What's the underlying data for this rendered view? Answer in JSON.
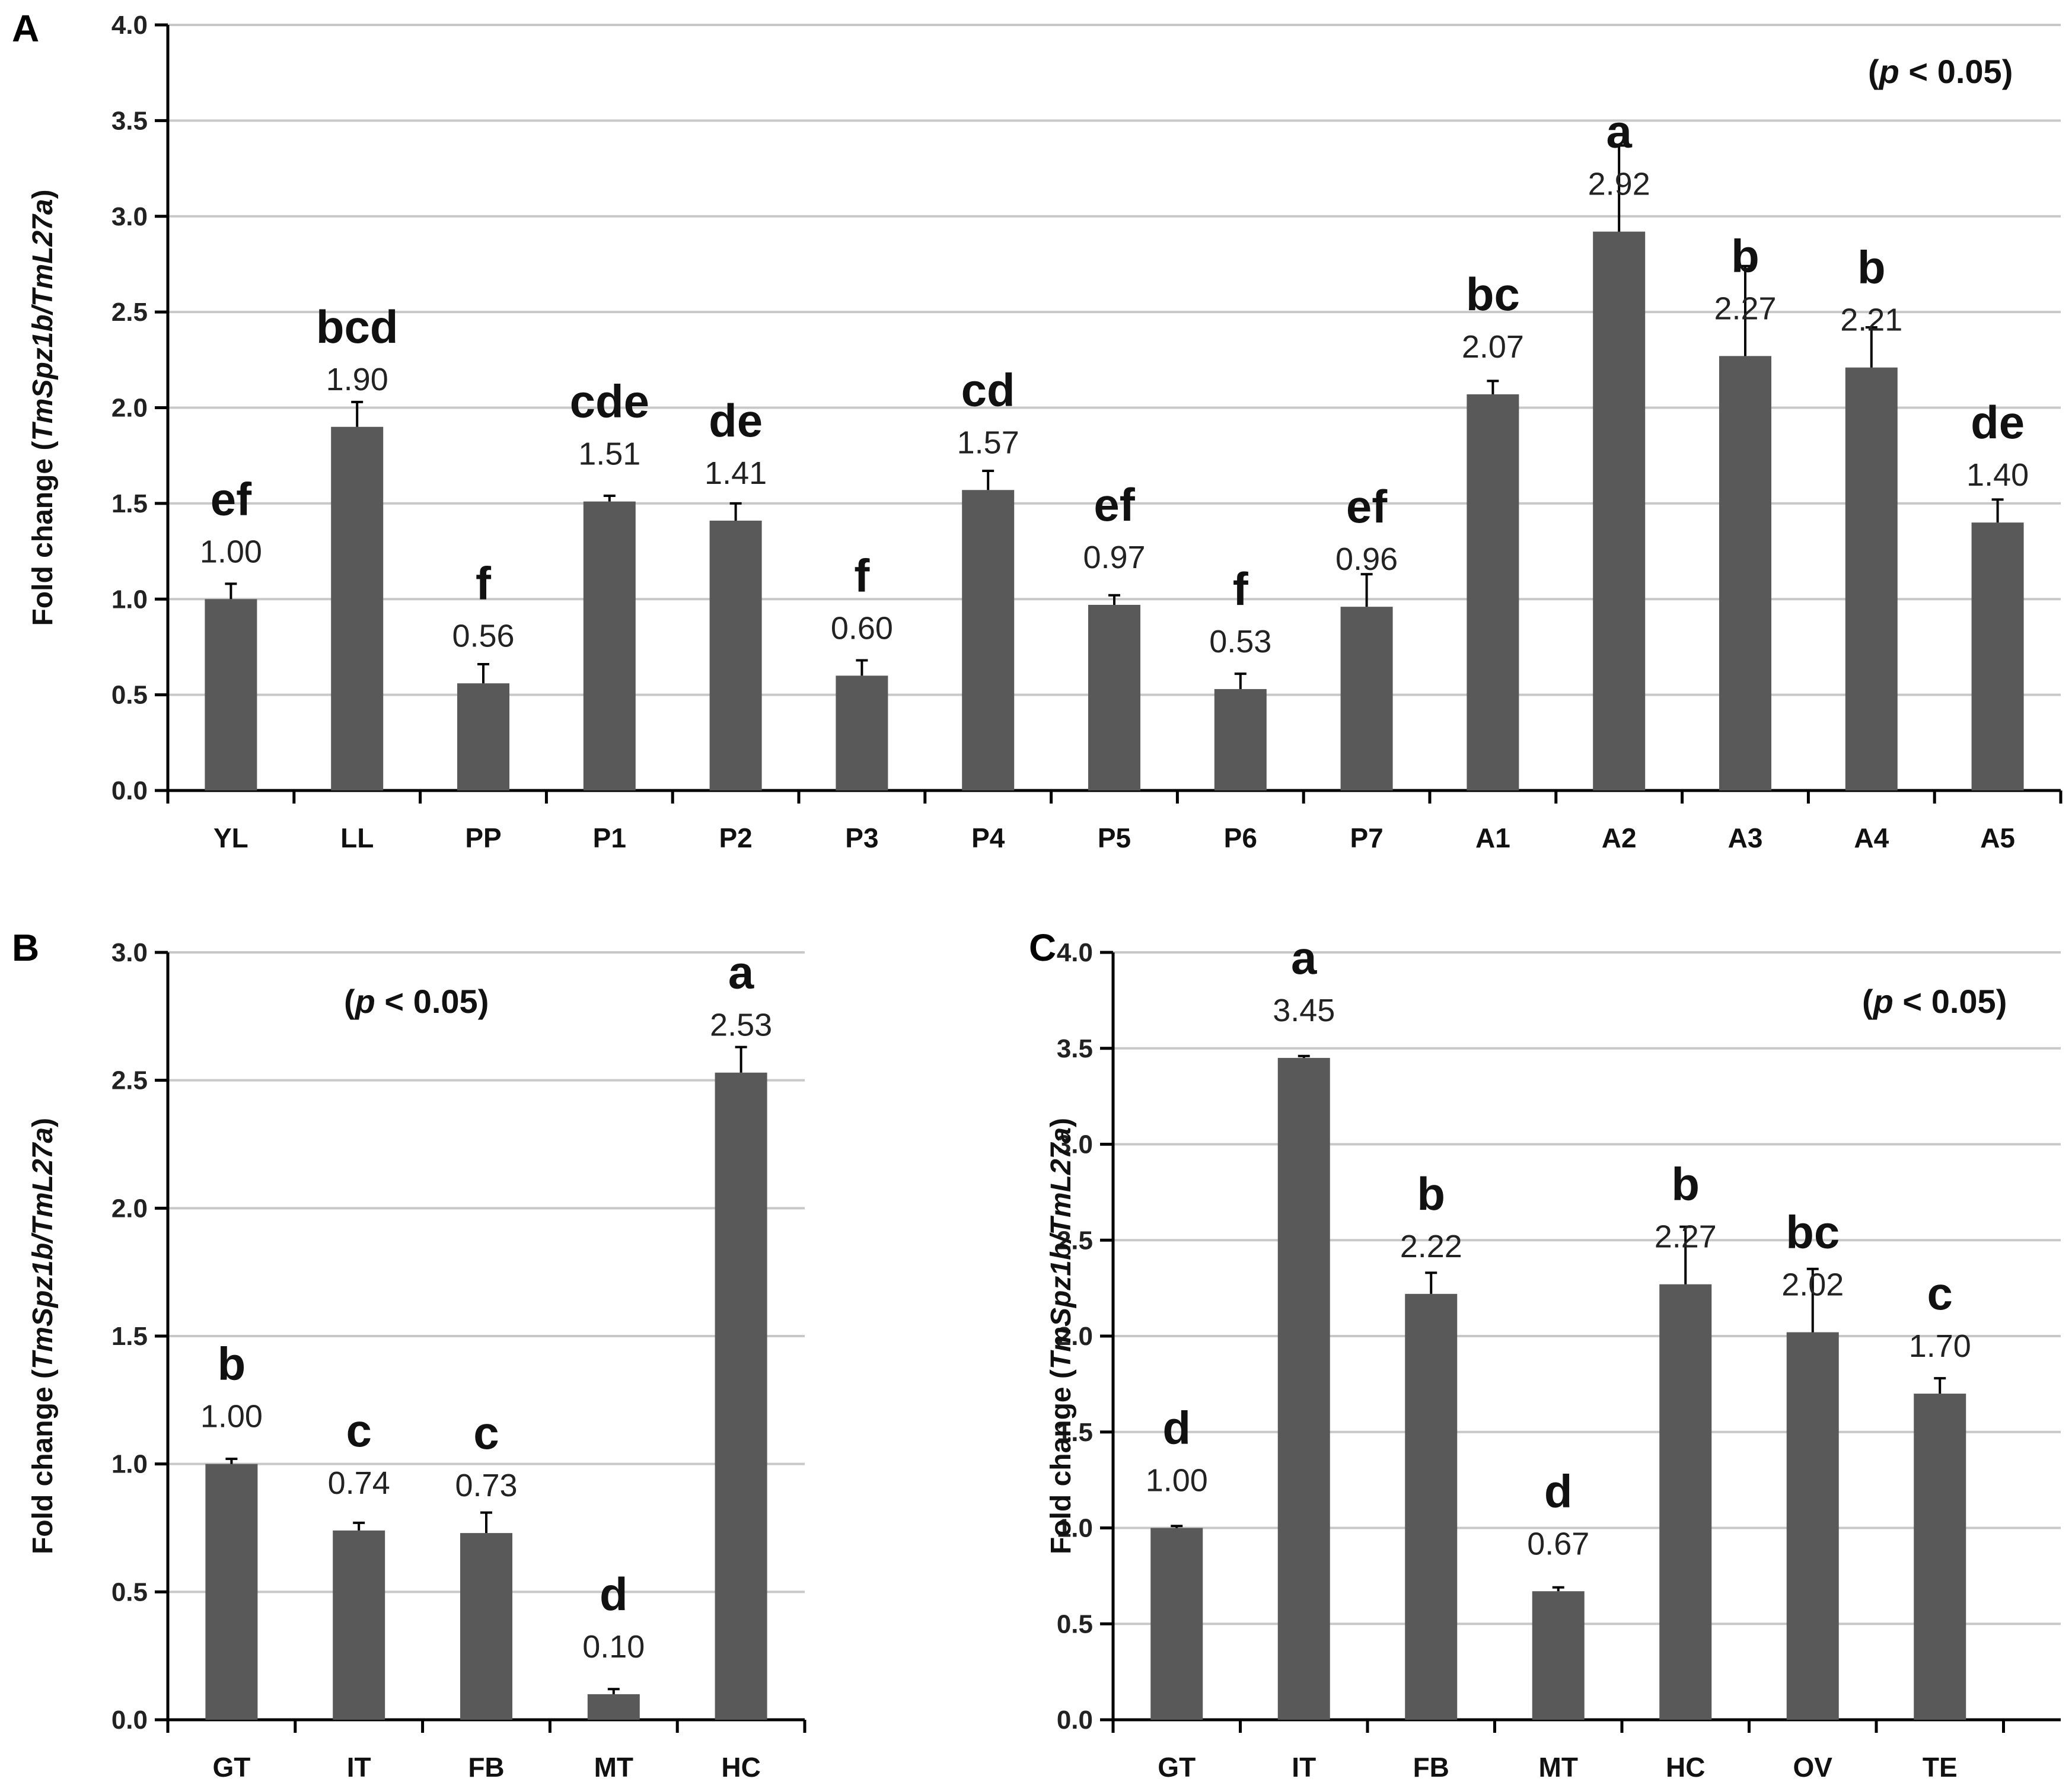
{
  "figure": {
    "ylabel_pre": "Fold change (",
    "ylabel_italic": "TmSpz1b/TmL27a",
    "ylabel_post": ")",
    "p_open": "(",
    "p_italic": "p",
    "p_rest": " < 0.05)"
  },
  "chart_data": [
    {
      "panel": "A",
      "type": "bar",
      "ylabel": "Fold change (TmSpz1b/TmL27a)",
      "significance": "(p < 0.05)",
      "ylim": [
        0,
        4
      ],
      "yticks": [
        "0.0",
        "0.5",
        "1.0",
        "1.5",
        "2.0",
        "2.5",
        "3.0",
        "3.5",
        "4.0"
      ],
      "grid": true,
      "categories": [
        "YL",
        "LL",
        "PP",
        "P1",
        "P2",
        "P3",
        "P4",
        "P5",
        "P6",
        "P7",
        "A1",
        "A2",
        "A3",
        "A4",
        "A5"
      ],
      "values": [
        1.0,
        1.9,
        0.56,
        1.51,
        1.41,
        0.6,
        1.57,
        0.97,
        0.53,
        0.96,
        2.07,
        2.92,
        2.27,
        2.21,
        1.4
      ],
      "value_labels": [
        "1.00",
        "1.90",
        "0.56",
        "1.51",
        "1.41",
        "0.60",
        "1.57",
        "0.97",
        "0.53",
        "0.96",
        "2.07",
        "2.92",
        "2.27",
        "2.21",
        "1.40"
      ],
      "errors": [
        0.08,
        0.13,
        0.1,
        0.03,
        0.09,
        0.08,
        0.1,
        0.05,
        0.08,
        0.17,
        0.07,
        0.45,
        0.47,
        0.21,
        0.12
      ],
      "letters": [
        "ef",
        "bcd",
        "f",
        "cde",
        "de",
        "f",
        "cd",
        "ef",
        "f",
        "ef",
        "bc",
        "a",
        "b",
        "b",
        "de"
      ]
    },
    {
      "panel": "B",
      "type": "bar",
      "ylabel": "Fold change (TmSpz1b/TmL27a)",
      "significance": "(p < 0.05)",
      "ylim": [
        0,
        3
      ],
      "yticks": [
        "0.0",
        "0.5",
        "1.0",
        "1.5",
        "2.0",
        "2.5",
        "3.0"
      ],
      "grid": true,
      "categories": [
        "GT",
        "IT",
        "FB",
        "MT",
        "HC"
      ],
      "values": [
        1.0,
        0.74,
        0.73,
        0.1,
        2.53
      ],
      "value_labels": [
        "1.00",
        "0.74",
        "0.73",
        "0.10",
        "2.53"
      ],
      "errors": [
        0.02,
        0.03,
        0.08,
        0.02,
        0.1
      ],
      "letters": [
        "b",
        "c",
        "c",
        "d",
        "a"
      ]
    },
    {
      "panel": "C",
      "type": "bar",
      "ylabel": "Fold change (TmSpz1b/TmL27a)",
      "significance": "(p < 0.05)",
      "ylim": [
        0,
        4
      ],
      "yticks": [
        "0.0",
        "0.5",
        "1.0",
        "1.5",
        "2.0",
        "2.5",
        "3.0",
        "3.5",
        "4.0"
      ],
      "grid": true,
      "categories": [
        "GT",
        "IT",
        "FB",
        "MT",
        "HC",
        "OV",
        "TE"
      ],
      "values": [
        1.0,
        3.45,
        2.22,
        0.67,
        2.27,
        2.02,
        1.7
      ],
      "value_labels": [
        "1.00",
        "3.45",
        "2.22",
        "0.67",
        "2.27",
        "2.02",
        "1.70"
      ],
      "errors": [
        0.01,
        0.01,
        0.11,
        0.02,
        0.3,
        0.33,
        0.08
      ],
      "letters": [
        "d",
        "a",
        "b",
        "d",
        "b",
        "bc",
        "c"
      ]
    }
  ]
}
